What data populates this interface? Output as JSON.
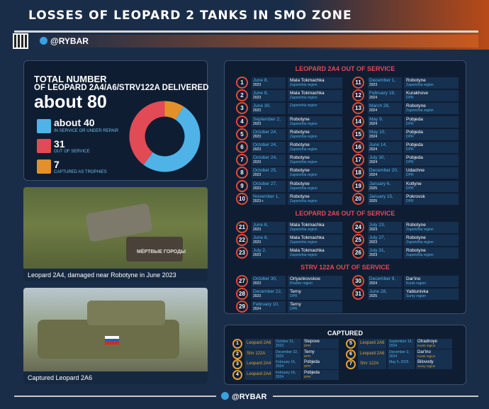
{
  "header": {
    "title": "LOSSES OF LEOPARD 2 TANKS IN SMO ZONE",
    "brand": "@RYBAR"
  },
  "stats": {
    "line1": "TOTAL NUMBER",
    "line2": "OF LEOPARD 2A4/A6/STRV122A DELIVERED",
    "total": "about 80",
    "items": [
      {
        "num": "about 40",
        "label": "IN SERVICE OR UNDER REPAIR",
        "color": "#4fb3e8"
      },
      {
        "num": "31",
        "label": "OUT OF SERVICE",
        "color": "#e24a55"
      },
      {
        "num": "7",
        "label": "CAPTURED AS TROPHIES",
        "color": "#e3902a"
      }
    ]
  },
  "photos": {
    "cap1": "Leopard 2A4, damaged near Robotyne in June 2023",
    "cap2": "Captured Leopard 2A6",
    "stamp": "МЁРТВЫЕ ГОРОДЫ"
  },
  "sections": {
    "a4": "LEOPARD 2A4 OUT OF SERVICE",
    "a6": "LEOPARD 2A6 OUT OF SERVICE",
    "strv": "STRV 122A OUT OF SERVICE",
    "captured": "CAPTURED"
  },
  "a4": [
    {
      "n": "1",
      "d": "June 8,",
      "y": "2023",
      "p": "Mala Tokmachka",
      "r": "Zaporizhia region"
    },
    {
      "n": "2",
      "d": "June 8,",
      "y": "2023",
      "p": "Mala Tokmachka",
      "r": "Zaporizhia region"
    },
    {
      "n": "3",
      "d": "June 30,",
      "y": "2023",
      "p": "",
      "r": "Zaporizhia region"
    },
    {
      "n": "4",
      "d": "September 2,",
      "y": "2023",
      "p": "Robotyne",
      "r": "Zaporizhia region"
    },
    {
      "n": "5",
      "d": "October 24,",
      "y": "2023",
      "p": "Robotyne",
      "r": "Zaporizhia region"
    },
    {
      "n": "6",
      "d": "October 24,",
      "y": "2023",
      "p": "Robotyne",
      "r": "Zaporizhia region"
    },
    {
      "n": "7",
      "d": "October 24,",
      "y": "2023",
      "p": "Robotyne",
      "r": "Zaporizhia region"
    },
    {
      "n": "8",
      "d": "October 25,",
      "y": "2023",
      "p": "Robotyne",
      "r": "Zaporizhia region"
    },
    {
      "n": "9",
      "d": "October 27,",
      "y": "2023",
      "p": "Robotyne",
      "r": "Zaporizhia region"
    },
    {
      "n": "10",
      "d": "November 1,",
      "y": "2023 г.",
      "p": "Robotyne",
      "r": "Zaporizhia region"
    },
    {
      "n": "11",
      "d": "December 1,",
      "y": "2023",
      "p": "Robotyne",
      "r": "Zaporizhia region"
    },
    {
      "n": "12",
      "d": "February 19,",
      "y": "2024",
      "p": "Kurakhove",
      "r": "DPR"
    },
    {
      "n": "13",
      "d": "March 26,",
      "y": "2024",
      "p": "Robotyne",
      "r": "Zaporizhia region"
    },
    {
      "n": "14",
      "d": "May 9,",
      "y": "2024",
      "p": "Pobjeda",
      "r": "DPR"
    },
    {
      "n": "15",
      "d": "May 10,",
      "y": "2024",
      "p": "Pobjeda",
      "r": "DPR"
    },
    {
      "n": "16",
      "d": "June 14,",
      "y": "2024",
      "p": "Pobjeda",
      "r": "DPR"
    },
    {
      "n": "17",
      "d": "July 30,",
      "y": "2024",
      "p": "Pobjeda",
      "r": "DPR"
    },
    {
      "n": "18",
      "d": "December 20,",
      "y": "2024",
      "p": "Udachne",
      "r": "DPR"
    },
    {
      "n": "19",
      "d": "January 6,",
      "y": "2025",
      "p": "Kotlyne",
      "r": "DPR"
    },
    {
      "n": "20",
      "d": "January 15,",
      "y": "2025",
      "p": "Pokrovsk",
      "r": "DPR"
    }
  ],
  "a6": [
    {
      "n": "21",
      "d": "June 8,",
      "y": "2023",
      "p": "Mala Tokmachka",
      "r": "Zaporizhia region"
    },
    {
      "n": "22",
      "d": "June 8,",
      "y": "2023",
      "p": "Mala Tokmachka",
      "r": "Zaporizhia region"
    },
    {
      "n": "23",
      "d": "July 2,",
      "y": "2023",
      "p": "Mala Tokmachka",
      "r": "Zaporizhia region"
    },
    {
      "n": "24",
      "d": "July 23,",
      "y": "2023",
      "p": "Robotyne",
      "r": "Zaporizhia region"
    },
    {
      "n": "25",
      "d": "July 27,",
      "y": "2023",
      "p": "Robotyne",
      "r": "Zaporizhia region"
    },
    {
      "n": "26",
      "d": "July 31,",
      "y": "2023",
      "p": "Robotyne",
      "r": "Zaporizhia region"
    }
  ],
  "strv": [
    {
      "n": "27",
      "d": "October 30,",
      "y": "2023",
      "p": "Orlyankovskoe",
      "r": "Kharkiv region"
    },
    {
      "n": "28",
      "d": "December 22,",
      "y": "2023",
      "p": "Terny",
      "r": "DPR"
    },
    {
      "n": "29",
      "d": "February 10,",
      "y": "2024",
      "p": "Terny",
      "r": "DPR"
    },
    {
      "n": "30",
      "d": "December 9,",
      "y": "2024",
      "p": "Dar'ino",
      "r": "Kursk region"
    },
    {
      "n": "31",
      "d": "June 28,",
      "y": "2025",
      "p": "Yablunivka",
      "r": "Sumy region"
    }
  ],
  "captured": [
    {
      "n": "1",
      "t": "Leopard 2A6",
      "d": "October 31, 2023",
      "p": "Stepove",
      "r": "DPR"
    },
    {
      "n": "2",
      "t": "Strv 122A",
      "d": "December 22, 2023",
      "p": "Terny",
      "r": "DPR"
    },
    {
      "n": "3",
      "t": "Leopard 2A4",
      "d": "February 16, 2024",
      "p": "Pobjeda",
      "r": "DPR"
    },
    {
      "n": "4",
      "t": "Leopard 2A4",
      "d": "February 18, 2024",
      "p": "Pobjeda",
      "r": "DPR"
    },
    {
      "n": "5",
      "t": "Leopard 2A6",
      "d": "September 19, 2024",
      "p": "Otradnoye",
      "r": "Kursk region"
    },
    {
      "n": "6",
      "t": "Leopard 2A6",
      "d": "December 3, 2024",
      "p": "Dar'ino",
      "r": "Kursk region"
    },
    {
      "n": "7",
      "t": "Strv 122A",
      "d": "May 5, 2025",
      "p": "Bilovody",
      "r": "Sumy region"
    }
  ],
  "chart_data": {
    "type": "pie",
    "categories": [
      "In service or under repair",
      "Out of service",
      "Captured as trophies"
    ],
    "values": [
      40,
      31,
      7
    ]
  }
}
